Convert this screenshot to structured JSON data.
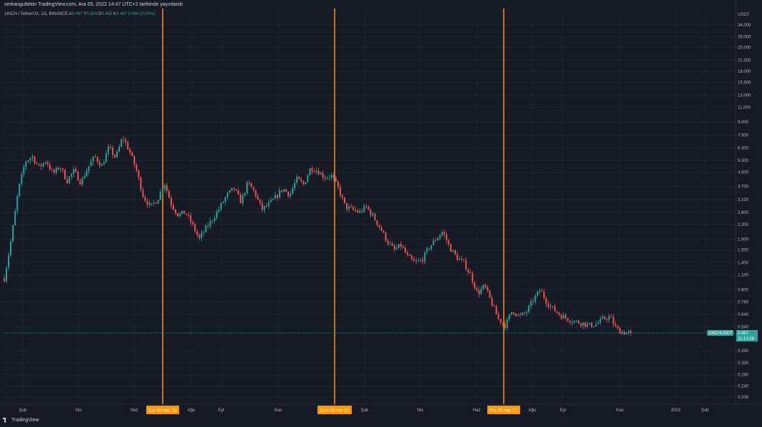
{
  "header": {
    "published_line": "serkangultekin TradingView.com, Ara 05, 2022 14:47 UTC+2 tarihinde yayınlandı",
    "symbol": "1INCH / TetherUS, 1G, BINANCE",
    "ohlc": {
      "A_label": "A",
      "A": "0.497",
      "Y_label": "Y",
      "Y": "0.504",
      "D_label": "D",
      "D": "0.492",
      "K_label": "K",
      "K": "0.497",
      "change": "0.000 (0.00%)"
    }
  },
  "price_axis": {
    "currency": "USDT",
    "ticks": [
      "34.000",
      "29.000",
      "25.000",
      "21.000",
      "18.000",
      "15.500",
      "13.000",
      "11.000",
      "9.000",
      "7.500",
      "6.300",
      "5.300",
      "4.500",
      "3.700",
      "3.100",
      "2.600",
      "2.200",
      "1.800",
      "1.550",
      "1.300",
      "1.100",
      "0.900",
      "0.760",
      "0.640",
      "0.540",
      "0.390",
      "0.330",
      "0.280",
      "0.240",
      "0.206"
    ],
    "last_price_label": "1INCHUSDT",
    "last_price": "0.497",
    "countdown": "11:12:09"
  },
  "time_axis": {
    "ticks": [
      "Şub",
      "Nis",
      "Haz",
      "Ağu",
      "Eyl",
      "Kas",
      "Şub",
      "Nis",
      "Haz",
      "Ağu",
      "Eyl",
      "Kas",
      "2023",
      "Şub"
    ]
  },
  "vertical_markers": [
    {
      "label": "Çar 30 Haz '21"
    },
    {
      "label": "Cum 31 Ara '21"
    },
    {
      "label": "Per 30 Haz '22"
    }
  ],
  "colors": {
    "up": "#26a69a",
    "down": "#ef5350",
    "marker": "#ff9800",
    "price_tag": "#26a69a"
  },
  "footer": {
    "brand": "TradingView"
  },
  "chart_data": {
    "type": "candlestick",
    "symbol": "1INCHUSDT",
    "scale": "log",
    "path": [
      1.05,
      1.8,
      3.5,
      5.2,
      5.6,
      4.8,
      5.3,
      4.4,
      4.9,
      4.0,
      4.6,
      3.9,
      4.8,
      5.6,
      4.9,
      6.3,
      5.5,
      7.3,
      6.0,
      4.6,
      3.2,
      2.8,
      3.1,
      3.9,
      2.9,
      2.5,
      2.6,
      2.2,
      1.8,
      2.1,
      2.4,
      2.8,
      3.3,
      3.6,
      3.0,
      3.9,
      3.4,
      2.7,
      2.9,
      3.2,
      3.6,
      3.3,
      4.1,
      3.8,
      4.8,
      4.6,
      4.2,
      4.3,
      3.6,
      2.8,
      2.7,
      2.6,
      2.8,
      2.45,
      2.1,
      1.75,
      1.55,
      1.65,
      1.4,
      1.3,
      1.35,
      1.6,
      1.8,
      2.0,
      1.6,
      1.4,
      1.3,
      1.1,
      0.85,
      0.95,
      0.75,
      0.6,
      0.55,
      0.68,
      0.62,
      0.66,
      0.78,
      0.9,
      0.75,
      0.68,
      0.63,
      0.6,
      0.58,
      0.57,
      0.55,
      0.56,
      0.6,
      0.62,
      0.52,
      0.5,
      0.497
    ],
    "last_close": 0.497
  }
}
